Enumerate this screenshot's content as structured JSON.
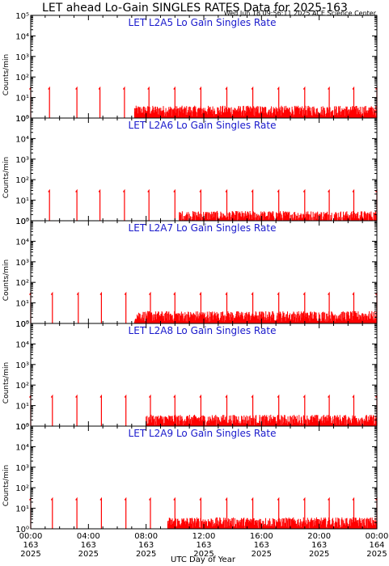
{
  "header": {
    "title": "LET ahead Lo-Gain SINGLES RATES Data for 2025-163",
    "timestamp": "Wed Jun 18 09:56:11 2025 ACE Science Center"
  },
  "axes": {
    "ylabel": "Counts/min",
    "xlabel": "UTC Day of Year",
    "y_tick_labels": [
      "10⁰",
      "10¹",
      "10²",
      "10³",
      "10⁴",
      "10⁵"
    ],
    "x_ticks": [
      {
        "time": "00:00",
        "day": "163",
        "year": "2025"
      },
      {
        "time": "04:00",
        "day": "163",
        "year": "2025"
      },
      {
        "time": "08:00",
        "day": "163",
        "year": "2025"
      },
      {
        "time": "12:00",
        "day": "163",
        "year": "2025"
      },
      {
        "time": "16:00",
        "day": "163",
        "year": "2025"
      },
      {
        "time": "20:00",
        "day": "163",
        "year": "2025"
      },
      {
        "time": "00:00",
        "day": "164",
        "year": "2025"
      }
    ]
  },
  "colors": {
    "data": "#ff0000",
    "panel_title": "#1a1acc",
    "axis": "#000000"
  },
  "chart_data": [
    {
      "type": "line",
      "title": "LET L2A5 Lo Gain Singles Rate",
      "xlabel": "UTC Day of Year",
      "ylabel": "Counts/min",
      "ylim": [
        1,
        100000
      ],
      "yscale": "log",
      "xlim_hours": [
        0,
        24
      ],
      "spike_times_hours": [
        0.0,
        1.3,
        3.2,
        4.8,
        6.5,
        8.2,
        10.0,
        11.8,
        13.6,
        15.4,
        17.2,
        19.0,
        20.7,
        22.4,
        24.0
      ],
      "spike_peak": 30,
      "baseline_level": 2,
      "baseline_start_hours": 7.2
    },
    {
      "type": "line",
      "title": "LET L2A6 Lo Gain Singles Rate",
      "xlabel": "UTC Day of Year",
      "ylabel": "Counts/min",
      "ylim": [
        1,
        100000
      ],
      "yscale": "log",
      "xlim_hours": [
        0,
        24
      ],
      "spike_times_hours": [
        1.3,
        3.2,
        4.8,
        6.5,
        8.2,
        10.0,
        11.8,
        13.6,
        15.4,
        17.2,
        19.0,
        20.7,
        22.4,
        24.0
      ],
      "spike_peak": 30,
      "baseline_level": 1.5,
      "baseline_start_hours": 10.3
    },
    {
      "type": "line",
      "title": "LET L2A7 Lo Gain Singles Rate",
      "xlabel": "UTC Day of Year",
      "ylabel": "Counts/min",
      "ylim": [
        1,
        100000
      ],
      "yscale": "log",
      "xlim_hours": [
        0,
        24
      ],
      "spike_times_hours": [
        0.0,
        1.5,
        3.3,
        4.9,
        6.6,
        8.3,
        10.0,
        11.8,
        13.6,
        15.4,
        17.2,
        19.0,
        20.7,
        22.4,
        24.0
      ],
      "spike_peak": 30,
      "baseline_level": 2,
      "baseline_start_hours": 7.2
    },
    {
      "type": "line",
      "title": "LET L2A8 Lo Gain Singles Rate",
      "xlabel": "UTC Day of Year",
      "ylabel": "Counts/min",
      "ylim": [
        1,
        100000
      ],
      "yscale": "log",
      "xlim_hours": [
        0,
        24
      ],
      "spike_times_hours": [
        0.0,
        1.5,
        3.2,
        4.9,
        6.6,
        8.3,
        10.0,
        11.8,
        13.6,
        15.4,
        17.2,
        19.0,
        20.7,
        22.4,
        24.0
      ],
      "spike_peak": 30,
      "baseline_level": 1.8,
      "baseline_start_hours": 8.0
    },
    {
      "type": "line",
      "title": "LET L2A9 Lo Gain Singles Rate",
      "xlabel": "UTC Day of Year",
      "ylabel": "Counts/min",
      "ylim": [
        1,
        100000
      ],
      "yscale": "log",
      "xlim_hours": [
        0,
        24
      ],
      "spike_times_hours": [
        0.0,
        1.5,
        3.2,
        4.9,
        6.6,
        8.3,
        10.0,
        11.8,
        13.6,
        15.4,
        17.2,
        19.0,
        20.7,
        22.4,
        24.0
      ],
      "spike_peak": 30,
      "baseline_level": 1.8,
      "baseline_start_hours": 9.5
    }
  ]
}
